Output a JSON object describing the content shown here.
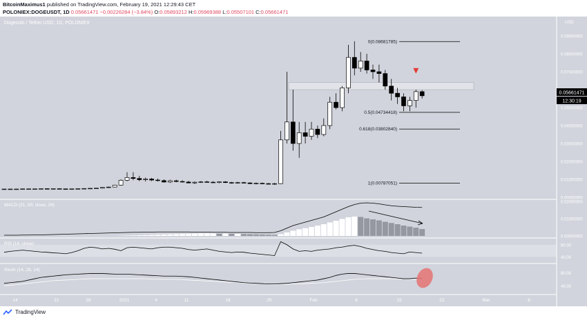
{
  "header": {
    "line1_prefix": "BitcoinMaximus1",
    "line1_suffix": " published on TradingView.com, February 19, 2021 12:29:43 CET",
    "symbol": "POLONIEX:DOGEUSDT, 1D",
    "price": "0.05661471",
    "change": "−0.00226284 (−3.84%)",
    "ohlc": [
      {
        "k": "O:",
        "v": "0.05893212"
      },
      {
        "k": "H:",
        "v": "0.05969388"
      },
      {
        "k": "L:",
        "v": "0.05507101"
      },
      {
        "k": "C:",
        "v": "0.05661471"
      }
    ]
  },
  "chart_title": "Dogecoin / Tether USD, 1D, POLONIEX",
  "price_axis": {
    "top_label": "USD",
    "ticks": [
      "0.09000000",
      "0.08000000",
      "0.07000000",
      "0.06000000",
      "0.05000000",
      "0.04000000",
      "0.03000000",
      "0.02000000",
      "0.01000000",
      "0.00000000"
    ],
    "last_price": "0.05661471",
    "countdown": "12:30:19"
  },
  "fib_labels": [
    {
      "text": "0(0.08681785)"
    },
    {
      "text": "0.5(0.04734418)"
    },
    {
      "text": "0.618(0.03802840)"
    },
    {
      "text": "1(0.00787051)"
    }
  ],
  "indicators": {
    "macd": {
      "label": "MACD (21, 50, close, 24)",
      "ticks": [
        "0.02000000",
        "0.01000000",
        "0.00000000"
      ]
    },
    "rsi": {
      "label": "RSI (14, close)",
      "ticks": [
        "80.00",
        "40.00"
      ]
    },
    "stoch": {
      "label": "Stoch (14, 28, 14)",
      "ticks": [
        "80.00",
        "40.00"
      ]
    }
  },
  "x_axis": {
    "ticks": [
      "14",
      "21",
      "28",
      "2021",
      "4",
      "11",
      "18",
      "25",
      "Feb",
      "8",
      "15",
      "22",
      "Mar",
      "8"
    ]
  },
  "footer": {
    "brand": "TradingView"
  },
  "colors": {
    "background": "#d1d4dc",
    "pane_bg": "#d1d4dc",
    "candle_up": "#ffffff",
    "candle_down": "#000000",
    "macd_hist_up": "#ffffff",
    "macd_hist_down": "#9598a1",
    "highlight_circle": "#e57373",
    "marker": "#e53935"
  },
  "chart_data": {
    "type": "candlestick",
    "title": "Dogecoin / Tether USD, 1D, POLONIEX",
    "ylim": [
      0,
      0.1
    ],
    "x_ticks": [
      "14",
      "21",
      "28",
      "2021",
      "4",
      "11",
      "18",
      "25",
      "Feb",
      "8",
      "15",
      "22",
      "Mar",
      "8"
    ],
    "candles": [
      [
        0.0046,
        0.0047,
        0.0045,
        0.0046
      ],
      [
        0.0046,
        0.0047,
        0.0045,
        0.0046
      ],
      [
        0.0046,
        0.0047,
        0.0045,
        0.0046
      ],
      [
        0.0046,
        0.0047,
        0.0045,
        0.0047
      ],
      [
        0.0047,
        0.0048,
        0.0046,
        0.0047
      ],
      [
        0.0047,
        0.0048,
        0.0046,
        0.0047
      ],
      [
        0.0047,
        0.0049,
        0.0046,
        0.0048
      ],
      [
        0.0048,
        0.005,
        0.0046,
        0.0047
      ],
      [
        0.0047,
        0.0049,
        0.0046,
        0.0048
      ],
      [
        0.0048,
        0.0049,
        0.0046,
        0.0047
      ],
      [
        0.0047,
        0.0048,
        0.0045,
        0.0046
      ],
      [
        0.0046,
        0.0048,
        0.0045,
        0.0047
      ],
      [
        0.0047,
        0.0049,
        0.0046,
        0.0048
      ],
      [
        0.0048,
        0.005,
        0.0047,
        0.0049
      ],
      [
        0.0049,
        0.0051,
        0.0047,
        0.005
      ],
      [
        0.005,
        0.0052,
        0.0048,
        0.0051
      ],
      [
        0.0051,
        0.0056,
        0.0049,
        0.0055
      ],
      [
        0.0055,
        0.006,
        0.0052,
        0.0057
      ],
      [
        0.0057,
        0.007,
        0.0055,
        0.0068
      ],
      [
        0.0068,
        0.01,
        0.0065,
        0.0095
      ],
      [
        0.0095,
        0.014,
        0.009,
        0.011
      ],
      [
        0.011,
        0.014,
        0.0095,
        0.0105
      ],
      [
        0.0105,
        0.012,
        0.009,
        0.0098
      ],
      [
        0.0098,
        0.011,
        0.0088,
        0.0102
      ],
      [
        0.0102,
        0.0108,
        0.009,
        0.0096
      ],
      [
        0.0096,
        0.0105,
        0.0088,
        0.0093
      ],
      [
        0.0093,
        0.01,
        0.0082,
        0.0085
      ],
      [
        0.0085,
        0.0098,
        0.008,
        0.0092
      ],
      [
        0.0092,
        0.0098,
        0.0084,
        0.0088
      ],
      [
        0.0088,
        0.0095,
        0.0082,
        0.0085
      ],
      [
        0.0085,
        0.0092,
        0.0078,
        0.008
      ],
      [
        0.008,
        0.0088,
        0.0074,
        0.0084
      ],
      [
        0.0084,
        0.009,
        0.008,
        0.0086
      ],
      [
        0.0086,
        0.0092,
        0.0082,
        0.0084
      ],
      [
        0.0084,
        0.009,
        0.008,
        0.0082
      ],
      [
        0.0082,
        0.0088,
        0.0078,
        0.0086
      ],
      [
        0.0086,
        0.009,
        0.008,
        0.0082
      ],
      [
        0.0082,
        0.0086,
        0.0076,
        0.008
      ],
      [
        0.008,
        0.0086,
        0.0076,
        0.0082
      ],
      [
        0.0082,
        0.0086,
        0.0078,
        0.008
      ],
      [
        0.008,
        0.0084,
        0.0074,
        0.0076
      ],
      [
        0.0076,
        0.0082,
        0.0072,
        0.0078
      ],
      [
        0.0078,
        0.0082,
        0.0074,
        0.0076
      ],
      [
        0.0076,
        0.008,
        0.0072,
        0.0074
      ],
      [
        0.0074,
        0.008,
        0.007,
        0.0076
      ],
      [
        0.0076,
        0.037,
        0.0074,
        0.032
      ],
      [
        0.032,
        0.07,
        0.03,
        0.042
      ],
      [
        0.042,
        0.06,
        0.026,
        0.03
      ],
      [
        0.03,
        0.042,
        0.022,
        0.036
      ],
      [
        0.036,
        0.042,
        0.03,
        0.034
      ],
      [
        0.034,
        0.042,
        0.032,
        0.038
      ],
      [
        0.038,
        0.04,
        0.033,
        0.035
      ],
      [
        0.035,
        0.044,
        0.034,
        0.04
      ],
      [
        0.04,
        0.056,
        0.038,
        0.053
      ],
      [
        0.053,
        0.058,
        0.049,
        0.05
      ],
      [
        0.05,
        0.062,
        0.048,
        0.061
      ],
      [
        0.061,
        0.085,
        0.058,
        0.078
      ],
      [
        0.078,
        0.087,
        0.068,
        0.072
      ],
      [
        0.072,
        0.081,
        0.07,
        0.076
      ],
      [
        0.076,
        0.08,
        0.069,
        0.071
      ],
      [
        0.071,
        0.074,
        0.066,
        0.07
      ],
      [
        0.07,
        0.074,
        0.064,
        0.069
      ],
      [
        0.069,
        0.071,
        0.06,
        0.062
      ],
      [
        0.062,
        0.066,
        0.054,
        0.058
      ],
      [
        0.058,
        0.061,
        0.052,
        0.056
      ],
      [
        0.056,
        0.058,
        0.048,
        0.051
      ],
      [
        0.051,
        0.056,
        0.048,
        0.054
      ],
      [
        0.054,
        0.06,
        0.05,
        0.0589
      ],
      [
        0.0589,
        0.0597,
        0.0551,
        0.0566
      ]
    ],
    "fib_levels": [
      0.08681785,
      0.04734418,
      0.0380284,
      0.00787051
    ],
    "resistance_zone": [
      0.06,
      0.064
    ],
    "macd_hist": [
      0,
      0,
      0,
      0,
      0,
      0,
      0,
      0,
      0,
      0,
      0,
      0,
      0,
      0,
      0,
      0,
      0,
      0,
      0,
      0.0001,
      0.0002,
      0.0003,
      0.0004,
      0.0005,
      0.0006,
      0.0007,
      0.0008,
      0.0009,
      0.001,
      0.0011,
      0.0012,
      0.0013,
      0.0014,
      0.0014,
      0.0014,
      0.0013,
      0.0013,
      0.0012,
      0.0012,
      0.0011,
      0.001,
      0.0009,
      0.0008,
      0.0007,
      0.0006,
      0.001,
      0.002,
      0.003,
      0.0038,
      0.0045,
      0.0052,
      0.006,
      0.0068,
      0.0078,
      0.0088,
      0.0098,
      0.0108,
      0.0112,
      0.011,
      0.0102,
      0.0096,
      0.009,
      0.0082,
      0.0075,
      0.0068,
      0.006,
      0.0054,
      0.0048,
      0.004
    ],
    "macd_line": [
      0.0004,
      0.0004,
      0.0004,
      0.0005,
      0.0005,
      0.0006,
      0.0006,
      0.0007,
      0.0008,
      0.0009,
      0.001,
      0.0011,
      0.0012,
      0.0013,
      0.0014,
      0.0015,
      0.0016,
      0.0017,
      0.0018,
      0.0019,
      0.002,
      0.0021,
      0.0021,
      0.0022,
      0.0022,
      0.0023,
      0.0023,
      0.0023,
      0.0023,
      0.0023,
      0.0023,
      0.0022,
      0.0022,
      0.0022,
      0.0021,
      0.0021,
      0.0021,
      0.002,
      0.002,
      0.002,
      0.002,
      0.0019,
      0.0019,
      0.0019,
      0.002,
      0.003,
      0.0045,
      0.006,
      0.007,
      0.008,
      0.009,
      0.01,
      0.011,
      0.0125,
      0.014,
      0.0155,
      0.017,
      0.0182,
      0.019,
      0.0192,
      0.019,
      0.0186,
      0.018,
      0.0175,
      0.0172,
      0.017,
      0.0168,
      0.0166,
      0.0165
    ],
    "rsi": [
      55,
      58,
      60,
      62,
      60,
      58,
      56,
      55,
      53,
      52,
      50,
      54,
      60,
      68,
      72,
      70,
      66,
      68,
      65,
      60,
      70,
      72,
      70,
      68,
      66,
      70,
      72,
      72,
      70,
      68,
      64,
      62,
      64,
      66,
      62,
      58,
      56,
      54,
      56,
      55,
      52,
      50,
      48,
      46,
      44,
      90,
      80,
      66,
      58,
      60,
      58,
      62,
      64,
      66,
      70,
      72,
      76,
      78,
      74,
      68,
      64,
      60,
      58,
      54,
      52,
      50,
      56,
      54,
      52
    ],
    "stoch_k": [
      48,
      50,
      52,
      54,
      58,
      62,
      66,
      68,
      70,
      72,
      74,
      75,
      76,
      77,
      78,
      78,
      78,
      77,
      76,
      76,
      76,
      75,
      74,
      73,
      72,
      71,
      70,
      70,
      70,
      69,
      68,
      66,
      64,
      62,
      60,
      58,
      56,
      54,
      52,
      50,
      49,
      48,
      47,
      46,
      46,
      47,
      48,
      50,
      52,
      54,
      56,
      58,
      62,
      66,
      72,
      76,
      78,
      78,
      76,
      74,
      72,
      70,
      68,
      66,
      64,
      62,
      62,
      64,
      62
    ],
    "stoch_d": [
      40,
      42,
      44,
      46,
      48,
      50,
      52,
      54,
      56,
      57,
      58,
      59,
      60,
      61,
      62,
      62,
      62,
      62,
      62,
      62,
      62,
      62,
      62,
      62,
      61,
      61,
      60,
      60,
      60,
      59,
      58,
      57,
      56,
      55,
      54,
      53,
      52,
      51,
      50,
      49,
      48,
      47,
      46,
      46,
      45,
      45,
      45,
      46,
      46,
      47,
      48,
      49,
      50,
      52,
      54,
      56,
      58,
      60,
      61,
      62,
      62,
      62,
      62,
      62,
      61,
      61,
      60,
      60,
      60
    ]
  }
}
